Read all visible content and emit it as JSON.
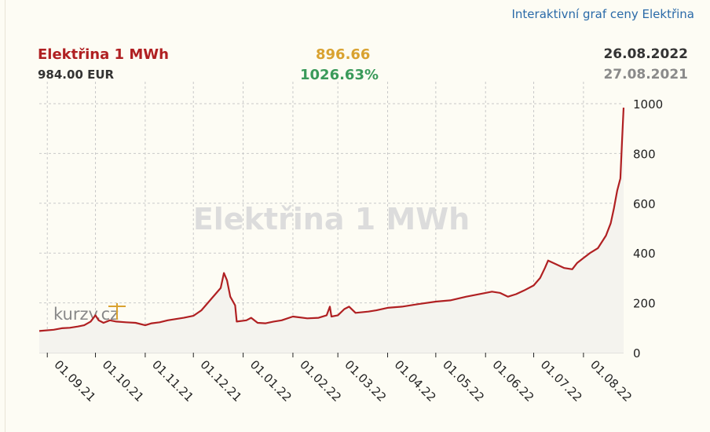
{
  "header": {
    "link_text": "Interaktivní graf ceny Elektřina",
    "instrument": "Elektřina 1 MWh",
    "price": "984.00 EUR",
    "change_abs": "896.66",
    "change_pct": "1026.63%",
    "date_end": "26.08.2022",
    "date_start": "27.08.2021"
  },
  "watermark": {
    "text": "Elektřina 1 MWh",
    "logo": "kurzy.cz"
  },
  "colors": {
    "line": "#b02022",
    "area": "#f4f3ee",
    "grid": "#c9c9c9",
    "background": "#fdfcf4"
  },
  "chart_data": {
    "type": "area",
    "title": "Elektřina 1 MWh",
    "unit": "EUR",
    "xlim": [
      "27.08.2021",
      "26.08.2022"
    ],
    "ylim": [
      0,
      1000
    ],
    "yticks": [
      0,
      200,
      400,
      600,
      800,
      1000
    ],
    "x_tick_labels": [
      "01.09.21",
      "01.10.21",
      "01.11.21",
      "01.12.21",
      "01.01.22",
      "01.02.22",
      "01.03.22",
      "01.04.22",
      "01.05.22",
      "01.06.22",
      "01.07.22",
      "01.08.22"
    ],
    "grid": true,
    "series": [
      {
        "points": [
          [
            "2021-08-27",
            87
          ],
          [
            "2021-09-05",
            92
          ],
          [
            "2021-09-10",
            98
          ],
          [
            "2021-09-15",
            100
          ],
          [
            "2021-09-20",
            105
          ],
          [
            "2021-09-24",
            110
          ],
          [
            "2021-09-28",
            125
          ],
          [
            "2021-10-01",
            150
          ],
          [
            "2021-10-03",
            130
          ],
          [
            "2021-10-06",
            120
          ],
          [
            "2021-10-10",
            130
          ],
          [
            "2021-10-14",
            125
          ],
          [
            "2021-10-20",
            122
          ],
          [
            "2021-10-26",
            120
          ],
          [
            "2021-11-01",
            110
          ],
          [
            "2021-11-05",
            118
          ],
          [
            "2021-11-10",
            122
          ],
          [
            "2021-11-15",
            130
          ],
          [
            "2021-11-20",
            135
          ],
          [
            "2021-11-25",
            140
          ],
          [
            "2021-12-01",
            148
          ],
          [
            "2021-12-06",
            170
          ],
          [
            "2021-12-10",
            200
          ],
          [
            "2021-12-14",
            230
          ],
          [
            "2021-12-18",
            260
          ],
          [
            "2021-12-20",
            320
          ],
          [
            "2021-12-22",
            290
          ],
          [
            "2021-12-24",
            225
          ],
          [
            "2021-12-27",
            190
          ],
          [
            "2021-12-28",
            125
          ],
          [
            "2022-01-03",
            130
          ],
          [
            "2022-01-06",
            140
          ],
          [
            "2022-01-10",
            120
          ],
          [
            "2022-01-15",
            118
          ],
          [
            "2022-01-20",
            125
          ],
          [
            "2022-01-25",
            130
          ],
          [
            "2022-02-01",
            145
          ],
          [
            "2022-02-10",
            138
          ],
          [
            "2022-02-17",
            140
          ],
          [
            "2022-02-22",
            150
          ],
          [
            "2022-02-24",
            185
          ],
          [
            "2022-02-25",
            145
          ],
          [
            "2022-03-01",
            150
          ],
          [
            "2022-03-05",
            175
          ],
          [
            "2022-03-08",
            185
          ],
          [
            "2022-03-12",
            160
          ],
          [
            "2022-03-20",
            165
          ],
          [
            "2022-03-25",
            170
          ],
          [
            "2022-04-01",
            180
          ],
          [
            "2022-04-10",
            185
          ],
          [
            "2022-04-20",
            195
          ],
          [
            "2022-05-01",
            205
          ],
          [
            "2022-05-10",
            210
          ],
          [
            "2022-05-20",
            225
          ],
          [
            "2022-06-01",
            240
          ],
          [
            "2022-06-05",
            245
          ],
          [
            "2022-06-10",
            240
          ],
          [
            "2022-06-15",
            225
          ],
          [
            "2022-06-20",
            235
          ],
          [
            "2022-06-25",
            250
          ],
          [
            "2022-07-01",
            270
          ],
          [
            "2022-07-05",
            300
          ],
          [
            "2022-07-08",
            340
          ],
          [
            "2022-07-10",
            370
          ],
          [
            "2022-07-15",
            355
          ],
          [
            "2022-07-20",
            340
          ],
          [
            "2022-07-25",
            335
          ],
          [
            "2022-07-28",
            360
          ],
          [
            "2022-08-01",
            380
          ],
          [
            "2022-08-05",
            400
          ],
          [
            "2022-08-10",
            420
          ],
          [
            "2022-08-15",
            470
          ],
          [
            "2022-08-18",
            520
          ],
          [
            "2022-08-20",
            580
          ],
          [
            "2022-08-22",
            650
          ],
          [
            "2022-08-24",
            700
          ],
          [
            "2022-08-25",
            850
          ],
          [
            "2022-08-26",
            984
          ]
        ]
      }
    ]
  }
}
